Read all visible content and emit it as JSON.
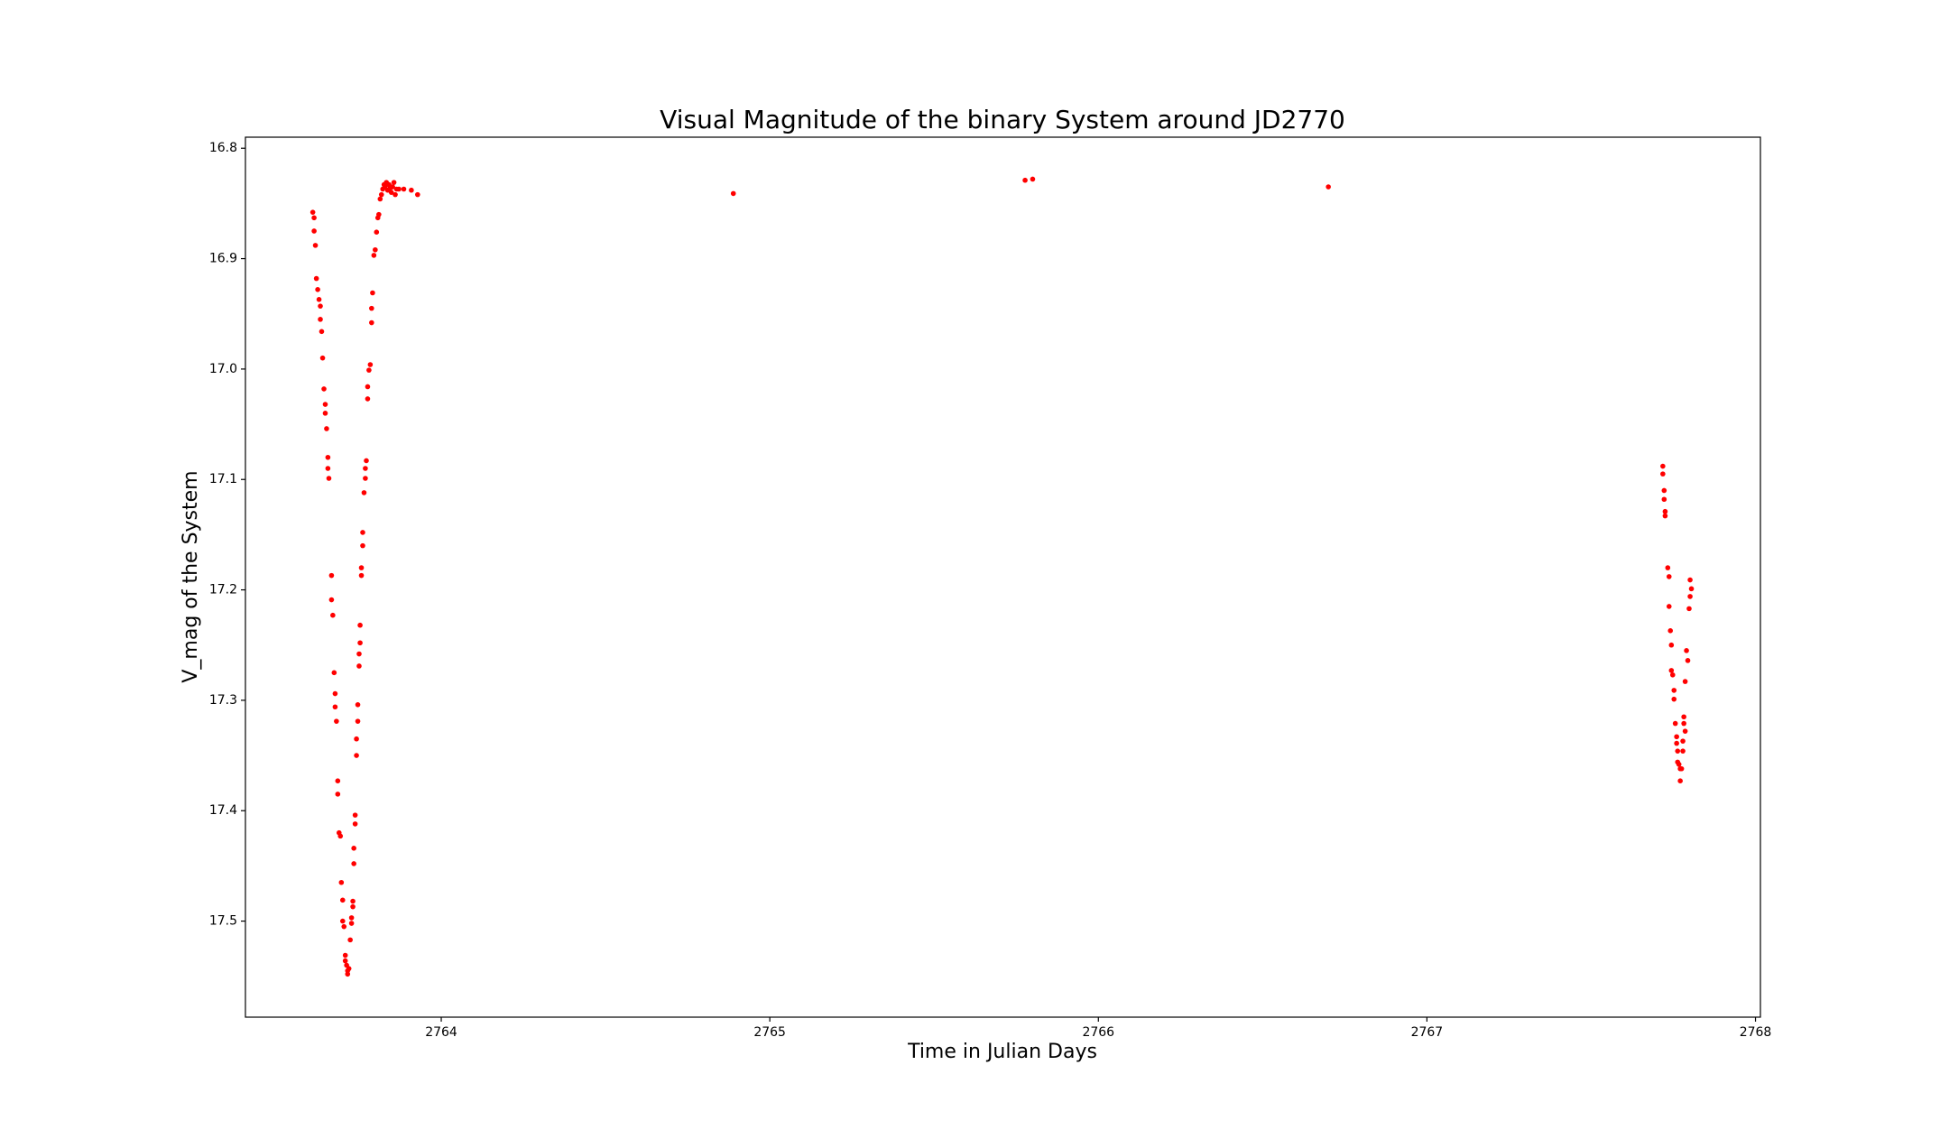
{
  "chart_data": {
    "type": "scatter",
    "title": "Visual Magnitude of the binary System around JD2770",
    "x_label": "Time in Julian Days",
    "y_label": "V_mag of the System",
    "color": "red",
    "y_inverted": true,
    "xlim": [
      2763.404,
      2768.015
    ],
    "ylim": [
      16.79,
      17.587
    ],
    "xticks": [
      2764,
      2765,
      2766,
      2767,
      2768
    ],
    "yticks": [
      16.8,
      16.9,
      {
        "value": 17,
        "label": "17.0"
      },
      17.1,
      17.2,
      17.3,
      17.4,
      17.5
    ],
    "x": [
      2763.609,
      2763.613,
      2763.613,
      2763.617,
      2763.62,
      2763.624,
      2763.628,
      2763.632,
      2763.632,
      2763.636,
      2763.639,
      2763.643,
      2763.647,
      2763.647,
      2763.651,
      2763.655,
      2763.655,
      2763.658,
      2763.666,
      2763.666,
      2763.67,
      2763.674,
      2763.677,
      2763.677,
      2763.681,
      2763.685,
      2763.685,
      2763.689,
      2763.693,
      2763.696,
      2763.7,
      2763.7,
      2763.704,
      2763.708,
      2763.708,
      2763.712,
      2763.715,
      2763.715,
      2763.719,
      2763.723,
      2763.727,
      2763.727,
      2763.731,
      2763.731,
      2763.734,
      2763.734,
      2763.738,
      2763.738,
      2763.742,
      2763.742,
      2763.746,
      2763.746,
      2763.75,
      2763.75,
      2763.753,
      2763.753,
      2763.757,
      2763.757,
      2763.761,
      2763.761,
      2763.765,
      2763.769,
      2763.769,
      2763.772,
      2763.776,
      2763.776,
      2763.78,
      2763.784,
      2763.788,
      2763.788,
      2763.791,
      2763.795,
      2763.799,
      2763.803,
      2763.807,
      2763.81,
      2763.814,
      2763.818,
      2763.822,
      2763.826,
      2763.829,
      2763.833,
      2763.837,
      2763.841,
      2763.845,
      2763.848,
      2763.852,
      2763.856,
      2763.86,
      2763.864,
      2763.871,
      2763.886,
      2763.909,
      2763.928,
      2764.889,
      2765.777,
      2765.8,
      2766.7,
      2767.718,
      2767.718,
      2767.722,
      2767.722,
      2767.725,
      2767.725,
      2767.733,
      2767.737,
      2767.737,
      2767.741,
      2767.744,
      2767.744,
      2767.748,
      2767.752,
      2767.752,
      2767.756,
      2767.76,
      2767.76,
      2767.763,
      2767.763,
      2767.767,
      2767.771,
      2767.771,
      2767.775,
      2767.779,
      2767.779,
      2767.782,
      2767.782,
      2767.786,
      2767.786,
      2767.79,
      2767.794,
      2767.798,
      2767.801,
      2767.801,
      2767.805
    ],
    "values": [
      16.858,
      16.863,
      16.875,
      16.888,
      16.918,
      16.928,
      16.937,
      16.943,
      16.955,
      16.966,
      16.99,
      17.018,
      17.032,
      17.04,
      17.054,
      17.08,
      17.09,
      17.099,
      17.187,
      17.209,
      17.223,
      17.275,
      17.294,
      17.306,
      17.319,
      17.373,
      17.385,
      17.42,
      17.423,
      17.465,
      17.481,
      17.5,
      17.505,
      17.531,
      17.536,
      17.54,
      17.545,
      17.548,
      17.543,
      17.517,
      17.502,
      17.497,
      17.487,
      17.482,
      17.448,
      17.434,
      17.412,
      17.404,
      17.35,
      17.335,
      17.319,
      17.304,
      17.269,
      17.258,
      17.248,
      17.232,
      17.187,
      17.18,
      17.16,
      17.148,
      17.112,
      17.099,
      17.09,
      17.083,
      17.027,
      17.016,
      17.001,
      16.996,
      16.958,
      16.945,
      16.931,
      16.897,
      16.892,
      16.876,
      16.863,
      16.86,
      16.846,
      16.842,
      16.837,
      16.833,
      16.835,
      16.831,
      16.838,
      16.833,
      16.836,
      16.84,
      16.835,
      16.831,
      16.842,
      16.837,
      16.837,
      16.837,
      16.838,
      16.842,
      16.841,
      16.829,
      16.828,
      16.835,
      17.088,
      17.095,
      17.11,
      17.118,
      17.129,
      17.133,
      17.18,
      17.188,
      17.215,
      17.237,
      17.25,
      17.273,
      17.277,
      17.291,
      17.299,
      17.321,
      17.333,
      17.339,
      17.346,
      17.356,
      17.358,
      17.362,
      17.373,
      17.362,
      17.346,
      17.337,
      17.321,
      17.315,
      17.328,
      17.283,
      17.255,
      17.264,
      17.217,
      17.206,
      17.191,
      17.199
    ]
  }
}
